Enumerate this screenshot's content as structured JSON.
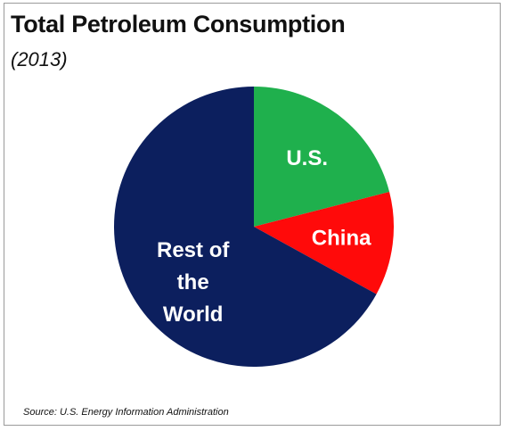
{
  "chart_data": {
    "type": "pie",
    "title": "Total Petroleum Consumption",
    "subtitle": "(2013)",
    "source": "Source: U.S. Energy Information Administration",
    "slices": [
      {
        "name": "U.S.",
        "label_lines": [
          "U.S."
        ],
        "value": 21,
        "color": "#1fb04d"
      },
      {
        "name": "China",
        "label_lines": [
          "China"
        ],
        "value": 12,
        "color": "#ff0a0a"
      },
      {
        "name": "Rest of the World",
        "label_lines": [
          "Rest of",
          "the",
          "World"
        ],
        "value": 67,
        "color": "#0c1f5e"
      }
    ],
    "start_angle_deg": 0,
    "direction": "clockwise",
    "label_color": "#ffffff"
  }
}
